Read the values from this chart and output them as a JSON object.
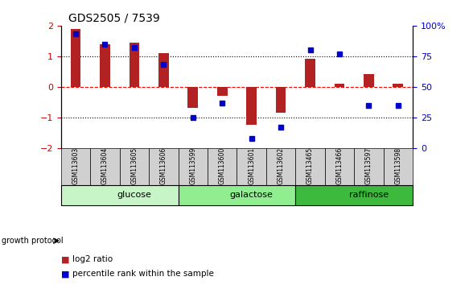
{
  "title": "GDS2505 / 7539",
  "samples": [
    "GSM113603",
    "GSM113604",
    "GSM113605",
    "GSM113606",
    "GSM113599",
    "GSM113600",
    "GSM113601",
    "GSM113602",
    "GSM113465",
    "GSM113466",
    "GSM113597",
    "GSM113598"
  ],
  "log2_ratio": [
    1.9,
    1.4,
    1.45,
    1.1,
    -0.7,
    -0.3,
    -1.25,
    -0.85,
    0.92,
    0.1,
    0.42,
    0.1
  ],
  "percentile_rank": [
    93,
    85,
    82,
    68,
    25,
    37,
    8,
    17,
    80,
    77,
    35,
    35
  ],
  "groups": [
    {
      "label": "glucose",
      "start": 0,
      "end": 4,
      "color": "#c8f5c8"
    },
    {
      "label": "galactose",
      "start": 4,
      "end": 8,
      "color": "#90ee90"
    },
    {
      "label": "raffinose",
      "start": 8,
      "end": 12,
      "color": "#3dba3d"
    }
  ],
  "bar_color": "#b22222",
  "dot_color": "#0000cc",
  "ylim_left": [
    -2,
    2
  ],
  "ylim_right": [
    0,
    100
  ],
  "yticks_left": [
    -2,
    -1,
    0,
    1,
    2
  ],
  "yticks_right": [
    0,
    25,
    50,
    75,
    100
  ],
  "yticklabels_right": [
    "0",
    "25",
    "50",
    "75",
    "100%"
  ],
  "background_color": "#ffffff",
  "tick_color_left": "#cc0000",
  "tick_color_right": "#0000cc",
  "label_log2": "log2 ratio",
  "label_pct": "percentile rank within the sample",
  "growth_protocol_label": "growth protocol",
  "bar_width": 0.35,
  "dot_size": 5,
  "sample_box_color": "#d0d0d0"
}
